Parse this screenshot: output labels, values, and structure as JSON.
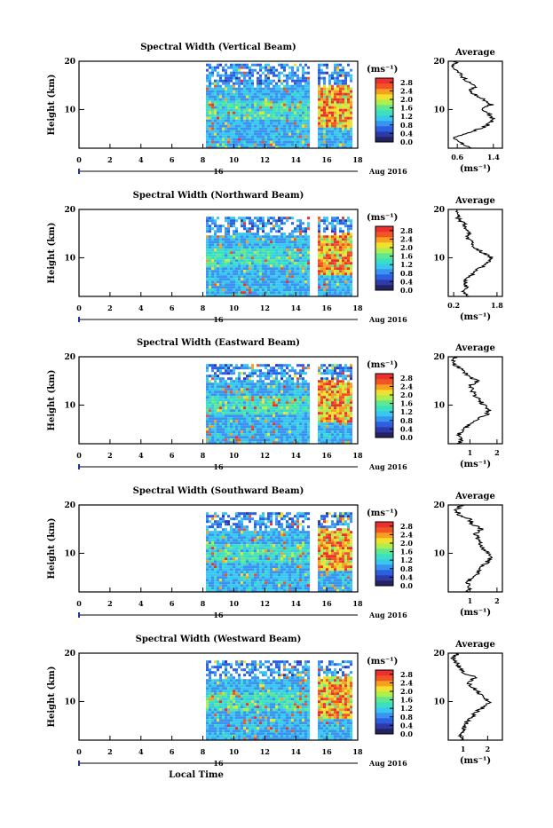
{
  "chart_data": {
    "type": "heatmap",
    "shared": {
      "x_ticks": [
        "0",
        "2",
        "4",
        "6",
        "8",
        "10",
        "12",
        "14",
        "16",
        "18"
      ],
      "x_tick_values": [
        0,
        2,
        4,
        6,
        8,
        10,
        12,
        14,
        16,
        18
      ],
      "xlim": [
        0,
        18
      ],
      "ylim": [
        2,
        20
      ],
      "y_ticks": [
        "20",
        "10"
      ],
      "y_tick_values": [
        20,
        10
      ],
      "ylabel": "Height (km)",
      "xlabel": "Local Time",
      "date_day": "16",
      "date_month": "Aug 2016",
      "colorbar_unit": "(ms⁻¹)",
      "colorbar_ticks": [
        "2.8",
        "2.4",
        "2.0",
        "1.6",
        "1.2",
        "0.8",
        "0.4",
        "0.0"
      ],
      "colorbar_range": [
        0,
        3.0
      ],
      "data_gaps_hours": [
        [
          0,
          8.2
        ],
        [
          14.8,
          15.4
        ]
      ],
      "average_title": "Average",
      "average_xlabel": "(ms⁻¹)",
      "colors": [
        "#23245f",
        "#2f3aa8",
        "#2c60e0",
        "#3a93f0",
        "#38c7ef",
        "#3ce0c0",
        "#60e890",
        "#b0ee50",
        "#f0e030",
        "#f7a020",
        "#f25525",
        "#ec3030"
      ]
    },
    "panels": [
      {
        "title": "Spectral Width (Vertical Beam)",
        "avg_xticks": [
          "0.6",
          "1.4"
        ],
        "avg_xtick_values": [
          0.6,
          1.4
        ],
        "avg_xlim": [
          0.4,
          1.6
        ],
        "average_profile": {
          "height": [
            2,
            3,
            4,
            5,
            6,
            7,
            8,
            9,
            10,
            11,
            12,
            13,
            14,
            15,
            16,
            17,
            18,
            19,
            20
          ],
          "value": [
            0.9,
            0.7,
            0.5,
            0.8,
            1.1,
            1.3,
            1.4,
            1.3,
            1.1,
            1.35,
            1.2,
            1.0,
            0.9,
            1.0,
            0.8,
            0.7,
            0.6,
            0.5,
            0.6
          ]
        }
      },
      {
        "title": "Spectral Width (Northward Beam)",
        "avg_xticks": [
          "0.2",
          "1.8"
        ],
        "avg_xtick_values": [
          0.2,
          1.8
        ],
        "avg_xlim": [
          0,
          2.0
        ],
        "average_profile": {
          "height": [
            2,
            3,
            4,
            5,
            6,
            7,
            8,
            9,
            10,
            11,
            12,
            13,
            14,
            15,
            16,
            17,
            18,
            19,
            20
          ],
          "value": [
            0.7,
            0.6,
            0.7,
            0.6,
            0.8,
            1.0,
            1.2,
            1.5,
            1.6,
            1.3,
            1.0,
            0.9,
            0.7,
            0.8,
            0.7,
            0.6,
            0.4,
            0.3,
            0.4
          ]
        }
      },
      {
        "title": "Spectral Width (Eastward Beam)",
        "avg_xticks": [
          "1",
          "2"
        ],
        "avg_xtick_values": [
          1,
          2
        ],
        "avg_xlim": [
          0.2,
          2.2
        ],
        "average_profile": {
          "height": [
            2,
            3,
            4,
            5,
            6,
            7,
            8,
            9,
            10,
            11,
            12,
            13,
            14,
            15,
            16,
            17,
            18,
            19,
            20
          ],
          "value": [
            0.6,
            0.7,
            0.6,
            0.8,
            1.0,
            1.3,
            1.6,
            1.7,
            1.5,
            1.4,
            1.2,
            1.1,
            1.0,
            1.3,
            0.9,
            0.8,
            0.5,
            0.4,
            0.5
          ]
        }
      },
      {
        "title": "Spectral Width (Southward Beam)",
        "avg_xticks": [
          "1",
          "2"
        ],
        "avg_xtick_values": [
          1,
          2
        ],
        "avg_xlim": [
          0.2,
          2.2
        ],
        "average_profile": {
          "height": [
            2,
            3,
            4,
            5,
            6,
            7,
            8,
            9,
            10,
            11,
            12,
            13,
            14,
            15,
            16,
            17,
            18,
            19,
            20
          ],
          "value": [
            0.9,
            1.0,
            0.9,
            1.1,
            1.3,
            1.4,
            1.6,
            1.8,
            1.7,
            1.5,
            1.4,
            1.3,
            1.2,
            1.4,
            1.1,
            1.0,
            0.6,
            0.5,
            0.7
          ]
        }
      },
      {
        "title": "Spectral Width (Westward Beam)",
        "avg_xticks": [
          "1",
          "2"
        ],
        "avg_xtick_values": [
          1,
          2
        ],
        "avg_xlim": [
          0.4,
          2.6
        ],
        "average_profile": {
          "height": [
            2,
            3,
            4,
            5,
            6,
            7,
            8,
            9,
            10,
            11,
            12,
            13,
            14,
            15,
            16,
            17,
            18,
            19,
            20
          ],
          "value": [
            1.0,
            0.9,
            1.1,
            1.0,
            1.2,
            1.4,
            1.6,
            1.9,
            2.1,
            1.8,
            1.6,
            1.4,
            1.2,
            1.5,
            1.0,
            0.9,
            0.7,
            0.6,
            0.8
          ]
        }
      }
    ]
  }
}
